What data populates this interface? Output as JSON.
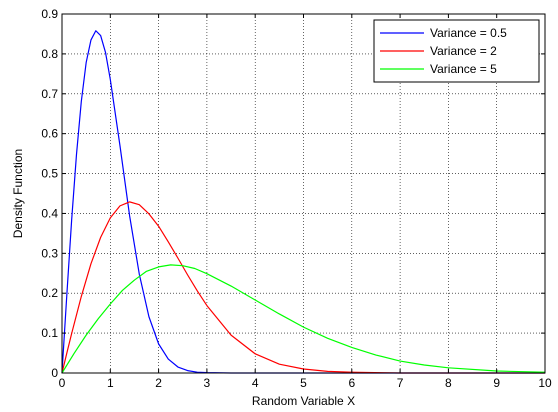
{
  "chart_data": {
    "type": "line",
    "title": "",
    "xlabel": "Random Variable X",
    "ylabel": "Density Function",
    "xlim": [
      0,
      10
    ],
    "ylim": [
      0,
      0.9
    ],
    "xticks": [
      "0",
      "1",
      "2",
      "3",
      "4",
      "5",
      "6",
      "7",
      "8",
      "9",
      "10"
    ],
    "yticks": [
      "0",
      "0.1",
      "0.2",
      "0.3",
      "0.4",
      "0.5",
      "0.6",
      "0.7",
      "0.8",
      "0.9"
    ],
    "grid": true,
    "grid_style": "dotted",
    "legend_position": "top-right",
    "series": [
      {
        "name": "Variance = 0.5",
        "color": "#0000ff",
        "x": [
          0,
          0.05,
          0.1,
          0.2,
          0.3,
          0.4,
          0.5,
          0.6,
          0.7,
          0.8,
          0.9,
          1.0,
          1.2,
          1.4,
          1.6,
          1.8,
          2.0,
          2.2,
          2.4,
          2.6,
          2.8,
          3.0,
          3.5,
          4,
          5,
          6,
          7,
          8,
          9,
          10
        ],
        "values": [
          0,
          0.099,
          0.196,
          0.384,
          0.548,
          0.681,
          0.778,
          0.835,
          0.858,
          0.846,
          0.804,
          0.736,
          0.57,
          0.394,
          0.248,
          0.141,
          0.073,
          0.035,
          0.015,
          0.006,
          0.002,
          0.001,
          0,
          0,
          0,
          0,
          0,
          0,
          0,
          0
        ]
      },
      {
        "name": "Variance = 2",
        "color": "#ff0000",
        "x": [
          0,
          0.1,
          0.2,
          0.4,
          0.6,
          0.8,
          1.0,
          1.2,
          1.4,
          1.6,
          1.8,
          2.0,
          2.2,
          2.4,
          2.6,
          2.8,
          3.0,
          3.5,
          4.0,
          4.5,
          5.0,
          5.5,
          6.0,
          7.0,
          8.0,
          9.0,
          10.0
        ],
        "values": [
          0,
          0.05,
          0.099,
          0.192,
          0.274,
          0.34,
          0.389,
          0.419,
          0.429,
          0.422,
          0.399,
          0.368,
          0.329,
          0.288,
          0.246,
          0.206,
          0.169,
          0.095,
          0.048,
          0.022,
          0.01,
          0.004,
          0.002,
          0,
          0,
          0,
          0
        ]
      },
      {
        "name": "Variance = 5",
        "color": "#00ff00",
        "x": [
          0,
          0.25,
          0.5,
          0.75,
          1.0,
          1.25,
          1.5,
          1.75,
          2.0,
          2.25,
          2.5,
          2.75,
          3.0,
          3.5,
          4.0,
          4.5,
          5.0,
          5.5,
          6.0,
          6.5,
          7.0,
          7.5,
          8.0,
          9.0,
          10.0
        ],
        "values": [
          0,
          0.049,
          0.095,
          0.136,
          0.173,
          0.207,
          0.233,
          0.255,
          0.266,
          0.271,
          0.269,
          0.262,
          0.249,
          0.218,
          0.183,
          0.148,
          0.115,
          0.087,
          0.064,
          0.045,
          0.03,
          0.02,
          0.013,
          0.005,
          0.002
        ]
      }
    ]
  }
}
